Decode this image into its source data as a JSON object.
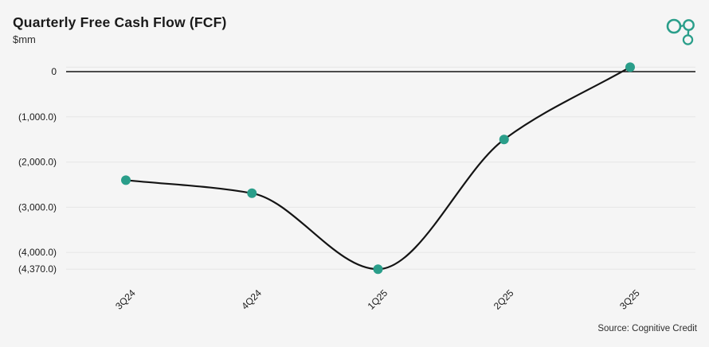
{
  "header": {
    "title": "Quarterly Free Cash Flow (FCF)",
    "subtitle": "$mm"
  },
  "branding": {
    "logo": "cognitive-credit-logo"
  },
  "footer": {
    "source": "Source: Cognitive Credit"
  },
  "colors": {
    "accent": "#2a9e8a",
    "background": "#f5f5f5",
    "line": "#141414",
    "grid": "#e6e6e6",
    "text": "#1a1a1a"
  },
  "chart_data": {
    "type": "line",
    "title": "Quarterly Free Cash Flow (FCF)",
    "units": "$mm",
    "categories": [
      "3Q24",
      "4Q24",
      "1Q25",
      "2Q25",
      "3Q25"
    ],
    "values": [
      -2400,
      -2690,
      -4370,
      -1500,
      100
    ],
    "ylim": [
      -4370,
      100
    ],
    "curve": "monotone",
    "legend": "none",
    "grid": "on",
    "x_tick_rotation": -45,
    "y_gridlines": [
      {
        "value": 100,
        "label": ""
      },
      {
        "value": 0,
        "label": "0",
        "emphasis": true
      },
      {
        "value": -1000,
        "label": "(1,000.0)"
      },
      {
        "value": -2000,
        "label": "(2,000.0)"
      },
      {
        "value": -3000,
        "label": "(3,000.0)"
      },
      {
        "value": -4000,
        "label": "(4,000.0)"
      },
      {
        "value": -4370,
        "label": "(4,370.0)"
      }
    ]
  }
}
